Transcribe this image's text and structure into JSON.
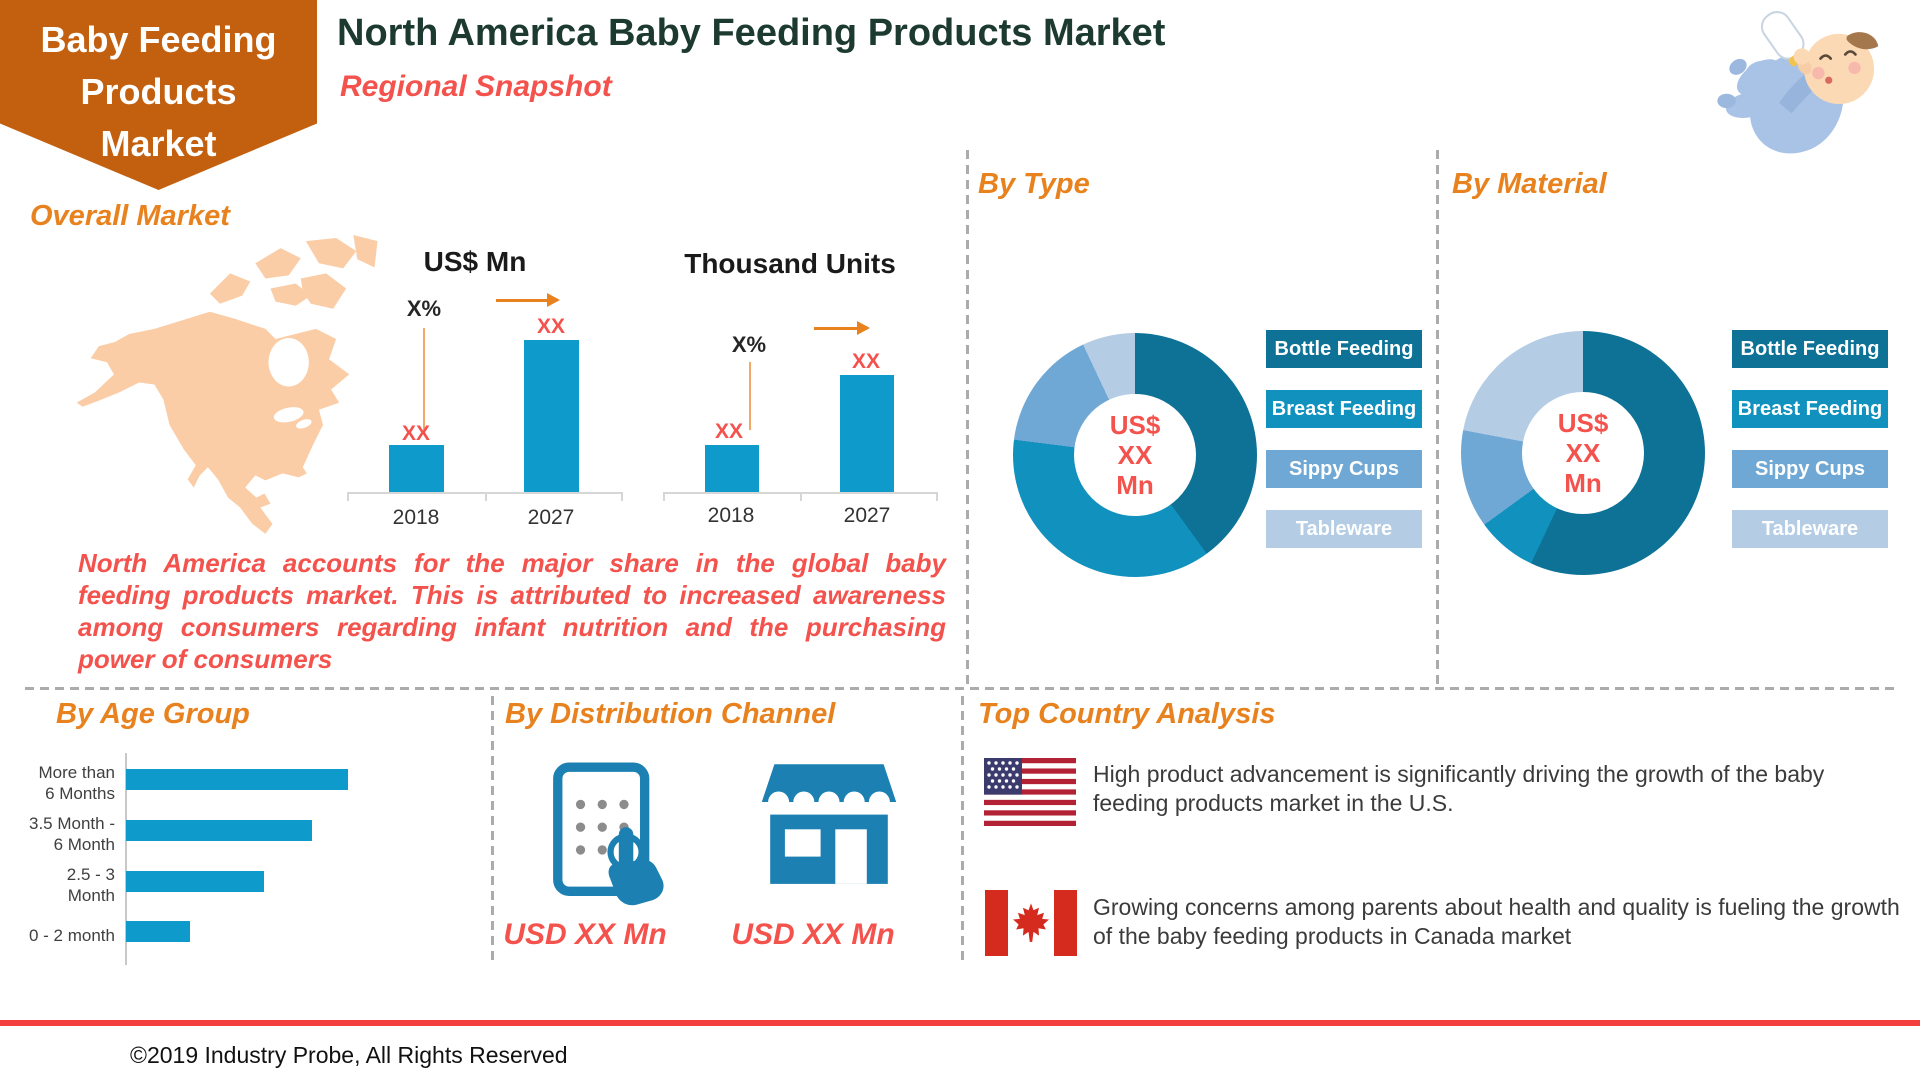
{
  "banner": {
    "lines": [
      "Baby Feeding",
      "Products",
      "Market"
    ]
  },
  "header": {
    "title": "North America Baby Feeding Products Market",
    "subtitle": "Regional Snapshot"
  },
  "sections": {
    "overall_market": {
      "heading": "Overall Market",
      "note": "North America accounts for the major share in the global baby feeding products market. This is attributed to increased awareness among consumers regarding infant nutrition and the purchasing power of consumers"
    },
    "by_type": {
      "heading": "By Type"
    },
    "by_material": {
      "heading": "By Material"
    },
    "by_age_group": {
      "heading": "By Age Group"
    },
    "by_distribution_channel": {
      "heading": "By Distribution Channel",
      "online_value": "USD XX Mn",
      "store_value": "USD XX Mn"
    },
    "top_country_analysis": {
      "heading": "Top Country Analysis",
      "us_text": "High product advancement is significantly driving the growth of the baby feeding products market in the U.S.",
      "canada_text": "Growing concerns among parents about health and quality  is fueling the growth of the baby feeding products in Canada market"
    }
  },
  "chart_data": [
    {
      "id": "overall-market-value",
      "type": "bar",
      "title": "US$ Mn",
      "categories": [
        "2018",
        "2027"
      ],
      "values": [
        "XX",
        "XX"
      ],
      "bar_heights_rel": [
        31,
        100
      ],
      "cagr_label": "X%",
      "ylabel": "",
      "xlabel": "",
      "grid": false
    },
    {
      "id": "overall-market-volume",
      "type": "bar",
      "title": "Thousand Units",
      "categories": [
        "2018",
        "2027"
      ],
      "values": [
        "XX",
        "XX"
      ],
      "bar_heights_rel": [
        40,
        100
      ],
      "cagr_label": "X%",
      "ylabel": "",
      "xlabel": "",
      "grid": false
    },
    {
      "id": "by-type",
      "type": "donut",
      "center_label": "US$\nXX\nMn",
      "segments": [
        {
          "label": "Bottle Feeding",
          "pct": 40
        },
        {
          "label": "Breast Feeding",
          "pct": 37
        },
        {
          "label": "Sippy Cups",
          "pct": 16
        },
        {
          "label": "Tableware",
          "pct": 7
        }
      ],
      "legend_position": "right"
    },
    {
      "id": "by-material",
      "type": "donut",
      "center_label": "US$\nXX\nMn",
      "segments": [
        {
          "label": "Bottle Feeding",
          "pct": 57
        },
        {
          "label": "Breast Feeding",
          "pct": 8
        },
        {
          "label": "Sippy Cups",
          "pct": 13
        },
        {
          "label": "Tableware",
          "pct": 22
        }
      ],
      "legend_position": "right"
    },
    {
      "id": "by-age-group",
      "type": "bar_horizontal",
      "categories": [
        "More than\n6 Months",
        "3.5 Month -\n6 Month",
        "2.5 - 3\nMonth",
        "0 - 2 month"
      ],
      "values_rel": [
        100,
        84,
        62,
        29
      ]
    }
  ],
  "icons": {
    "online_channel": "tablet-touch-icon",
    "retail_channel": "storefront-icon",
    "us": "us-flag",
    "canada": "canada-flag",
    "top_right": "baby-with-bottle-illustration",
    "map": "north-america-map"
  },
  "colors": {
    "banner_orange": "#C2600F",
    "heading_orange": "#E8821E",
    "title_green": "#1D3A31",
    "accent_red": "#F4524D",
    "bar_blue": "#0E9BCB",
    "icon_blue": "#1C80B2",
    "map_peach": "#FACDA6",
    "footer_red": "#F4403C",
    "donut_palette": [
      "#0D7296",
      "#1191BE",
      "#6FA8D4",
      "#B4CCE4"
    ]
  },
  "footer": {
    "copyright": "©2019 Industry Probe, All Rights Reserved"
  }
}
